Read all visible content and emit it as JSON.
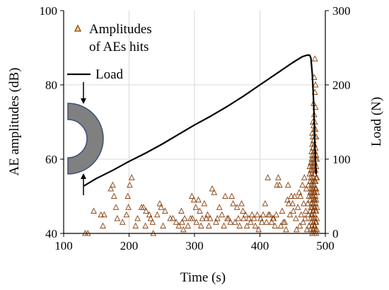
{
  "chart_data": {
    "type": "scatter",
    "title": "",
    "xlabel": "Time (s)",
    "ylabel": "AE amplitudes (dB)",
    "y2label": "Load (N)",
    "xlim": [
      100,
      500
    ],
    "ylim": [
      40,
      100
    ],
    "y2lim": [
      0,
      300
    ],
    "x_ticks": [
      "100",
      "200",
      "300",
      "400",
      "500"
    ],
    "y_ticks": [
      "40",
      "60",
      "80",
      "100"
    ],
    "y2_ticks": [
      "0",
      "100",
      "200",
      "300"
    ],
    "grid": "vertical",
    "legend": [
      {
        "text": "Amplitudes",
        "symbol": "triangle"
      },
      {
        "text": "of AEs hits",
        "symbol": "none"
      },
      {
        "text": "Load",
        "symbol": "line"
      }
    ],
    "series": [
      {
        "name": "Amplitudes of AEs hits",
        "axis": "left",
        "marker": "triangle",
        "color": "#8B4513",
        "points": [
          [
            133,
            40
          ],
          [
            137,
            40
          ],
          [
            146,
            46
          ],
          [
            157,
            45
          ],
          [
            160,
            42
          ],
          [
            162,
            45
          ],
          [
            172,
            52
          ],
          [
            175,
            53
          ],
          [
            177,
            50
          ],
          [
            180,
            47
          ],
          [
            182,
            44
          ],
          [
            190,
            43
          ],
          [
            196,
            45
          ],
          [
            198,
            50
          ],
          [
            199,
            47
          ],
          [
            201,
            53
          ],
          [
            204,
            55
          ],
          [
            210,
            42
          ],
          [
            213,
            44
          ],
          [
            219,
            47
          ],
          [
            222,
            47
          ],
          [
            225,
            42
          ],
          [
            226,
            46
          ],
          [
            231,
            45
          ],
          [
            233,
            44
          ],
          [
            236,
            43
          ],
          [
            237,
            40
          ],
          [
            243,
            45
          ],
          [
            247,
            48
          ],
          [
            249,
            47
          ],
          [
            252,
            42
          ],
          [
            255,
            46
          ],
          [
            263,
            44
          ],
          [
            267,
            44
          ],
          [
            272,
            43
          ],
          [
            276,
            42
          ],
          [
            280,
            46
          ],
          [
            281,
            43
          ],
          [
            283,
            41
          ],
          [
            285,
            44
          ],
          [
            290,
            42
          ],
          [
            294,
            44
          ],
          [
            296,
            50
          ],
          [
            297,
            44
          ],
          [
            299,
            49
          ],
          [
            302,
            47
          ],
          [
            303,
            43
          ],
          [
            306,
            49
          ],
          [
            308,
            46
          ],
          [
            310,
            42
          ],
          [
            312,
            44
          ],
          [
            315,
            48
          ],
          [
            318,
            44
          ],
          [
            320,
            45
          ],
          [
            322,
            42
          ],
          [
            324,
            44
          ],
          [
            327,
            52
          ],
          [
            330,
            51
          ],
          [
            333,
            43
          ],
          [
            335,
            44
          ],
          [
            338,
            47
          ],
          [
            342,
            45
          ],
          [
            345,
            42
          ],
          [
            347,
            50
          ],
          [
            350,
            44
          ],
          [
            352,
            44
          ],
          [
            355,
            43
          ],
          [
            357,
            50
          ],
          [
            359,
            48
          ],
          [
            362,
            43
          ],
          [
            365,
            47
          ],
          [
            367,
            44
          ],
          [
            369,
            42
          ],
          [
            372,
            48
          ],
          [
            374,
            46
          ],
          [
            375,
            44
          ],
          [
            378,
            45
          ],
          [
            380,
            42
          ],
          [
            383,
            44
          ],
          [
            386,
            43
          ],
          [
            388,
            45
          ],
          [
            391,
            44
          ],
          [
            393,
            42
          ],
          [
            396,
            45
          ],
          [
            398,
            41
          ],
          [
            401,
            44
          ],
          [
            403,
            43
          ],
          [
            405,
            45
          ],
          [
            408,
            48
          ],
          [
            410,
            43
          ],
          [
            412,
            55
          ],
          [
            413,
            45
          ],
          [
            415,
            45
          ],
          [
            418,
            43
          ],
          [
            420,
            44
          ],
          [
            421,
            44
          ],
          [
            423,
            42
          ],
          [
            425,
            45
          ],
          [
            426,
            53
          ],
          [
            428,
            55
          ],
          [
            430,
            53
          ],
          [
            432,
            42
          ],
          [
            434,
            46
          ],
          [
            436,
            43
          ],
          [
            438,
            43
          ],
          [
            440,
            41
          ],
          [
            442,
            49
          ],
          [
            443,
            53
          ],
          [
            444,
            48
          ],
          [
            446,
            45
          ],
          [
            448,
            50
          ],
          [
            450,
            48
          ],
          [
            451,
            46
          ],
          [
            453,
            50
          ],
          [
            455,
            44
          ],
          [
            456,
            41
          ],
          [
            458,
            47
          ],
          [
            460,
            51
          ],
          [
            461,
            42
          ],
          [
            462,
            50
          ],
          [
            463,
            45
          ],
          [
            465,
            53
          ],
          [
            466,
            43
          ],
          [
            467,
            48
          ],
          [
            468,
            55
          ],
          [
            469,
            44
          ],
          [
            470,
            46
          ],
          [
            471,
            52
          ],
          [
            472,
            41
          ],
          [
            473,
            48
          ],
          [
            474,
            53
          ],
          [
            474,
            45
          ],
          [
            475,
            50
          ],
          [
            475,
            42
          ],
          [
            476,
            58
          ],
          [
            476,
            56
          ],
          [
            477,
            54
          ],
          [
            477,
            51
          ],
          [
            477,
            49
          ],
          [
            477,
            46
          ],
          [
            478,
            59
          ],
          [
            478,
            57
          ],
          [
            478,
            55
          ],
          [
            478,
            52
          ],
          [
            478,
            50
          ],
          [
            478,
            47
          ],
          [
            478,
            44
          ],
          [
            478,
            41
          ],
          [
            479,
            62
          ],
          [
            479,
            60
          ],
          [
            479,
            58
          ],
          [
            479,
            56
          ],
          [
            479,
            53
          ],
          [
            479,
            51
          ],
          [
            479,
            48
          ],
          [
            479,
            45
          ],
          [
            479,
            43
          ],
          [
            480,
            67
          ],
          [
            480,
            64
          ],
          [
            480,
            61
          ],
          [
            480,
            59
          ],
          [
            480,
            57
          ],
          [
            480,
            54
          ],
          [
            480,
            52
          ],
          [
            480,
            50
          ],
          [
            480,
            47
          ],
          [
            480,
            45
          ],
          [
            480,
            42
          ],
          [
            480,
            40
          ],
          [
            481,
            70
          ],
          [
            481,
            66
          ],
          [
            481,
            63
          ],
          [
            481,
            60
          ],
          [
            481,
            58
          ],
          [
            481,
            55
          ],
          [
            481,
            53
          ],
          [
            481,
            51
          ],
          [
            481,
            49
          ],
          [
            481,
            46
          ],
          [
            481,
            44
          ],
          [
            481,
            41
          ],
          [
            482,
            75
          ],
          [
            482,
            69
          ],
          [
            482,
            65
          ],
          [
            482,
            62
          ],
          [
            482,
            59
          ],
          [
            482,
            57
          ],
          [
            482,
            54
          ],
          [
            482,
            52
          ],
          [
            482,
            50
          ],
          [
            482,
            48
          ],
          [
            482,
            46
          ],
          [
            482,
            43
          ],
          [
            482,
            41
          ],
          [
            483,
            82
          ],
          [
            483,
            72
          ],
          [
            483,
            68
          ],
          [
            483,
            64
          ],
          [
            483,
            61
          ],
          [
            483,
            58
          ],
          [
            483,
            56
          ],
          [
            483,
            53
          ],
          [
            483,
            51
          ],
          [
            483,
            49
          ],
          [
            483,
            47
          ],
          [
            483,
            45
          ],
          [
            483,
            42
          ],
          [
            483,
            40
          ],
          [
            484,
            87
          ],
          [
            484,
            78
          ],
          [
            484,
            70
          ],
          [
            484,
            66
          ],
          [
            484,
            62
          ],
          [
            484,
            59
          ],
          [
            484,
            56
          ],
          [
            484,
            54
          ],
          [
            484,
            51
          ],
          [
            484,
            49
          ],
          [
            484,
            47
          ],
          [
            484,
            44
          ],
          [
            484,
            42
          ],
          [
            485,
            80
          ],
          [
            485,
            74
          ],
          [
            485,
            68
          ],
          [
            485,
            63
          ],
          [
            485,
            60
          ],
          [
            485,
            57
          ],
          [
            485,
            54
          ],
          [
            485,
            52
          ],
          [
            485,
            50
          ],
          [
            485,
            48
          ],
          [
            485,
            46
          ],
          [
            485,
            43
          ],
          [
            485,
            41
          ],
          [
            486,
            66
          ],
          [
            486,
            61
          ],
          [
            486,
            58
          ],
          [
            486,
            55
          ],
          [
            486,
            52
          ],
          [
            486,
            49
          ],
          [
            486,
            46
          ],
          [
            486,
            43
          ],
          [
            486,
            40
          ],
          [
            487,
            60
          ],
          [
            487,
            55
          ],
          [
            487,
            51
          ],
          [
            487,
            47
          ],
          [
            487,
            44
          ],
          [
            487,
            41
          ]
        ]
      },
      {
        "name": "Load",
        "axis": "right",
        "line": true,
        "color": "#000000",
        "points": [
          [
            131,
            64
          ],
          [
            150,
            74
          ],
          [
            175,
            85
          ],
          [
            200,
            97
          ],
          [
            225,
            108
          ],
          [
            250,
            120
          ],
          [
            275,
            133
          ],
          [
            300,
            146
          ],
          [
            325,
            158
          ],
          [
            350,
            171
          ],
          [
            375,
            185
          ],
          [
            400,
            200
          ],
          [
            425,
            215
          ],
          [
            450,
            230
          ],
          [
            465,
            238
          ],
          [
            472,
            240
          ],
          [
            476,
            240
          ],
          [
            478,
            236
          ],
          [
            480,
            215
          ],
          [
            482,
            180
          ],
          [
            483,
            150
          ],
          [
            484,
            120
          ],
          [
            485,
            95
          ],
          [
            486,
            80
          ]
        ]
      }
    ]
  }
}
